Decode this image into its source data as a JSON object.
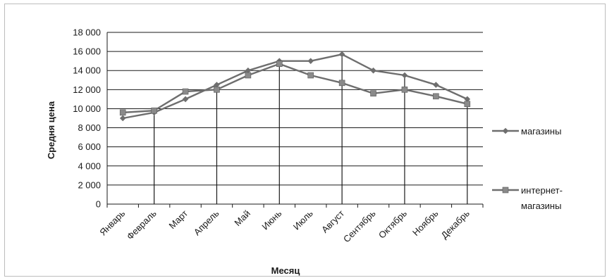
{
  "chart_data": {
    "type": "line",
    "xlabel": "Месяц",
    "ylabel": "Средня цена",
    "ylim": [
      0,
      18000
    ],
    "yticks": [
      0,
      2000,
      4000,
      6000,
      8000,
      10000,
      12000,
      14000,
      16000,
      18000
    ],
    "ytick_labels": [
      "0",
      "2 000",
      "4 000",
      "6 000",
      "8 000",
      "10 000",
      "12 000",
      "14 000",
      "16 000",
      "18 000"
    ],
    "categories": [
      "Январь",
      "Февраль",
      "Март",
      "Апрель",
      "Май",
      "Июнь",
      "Июль",
      "Август",
      "Сентябрь",
      "Октябрь",
      "Ноябрь",
      "Декабрь"
    ],
    "grid": "horizontal",
    "legend_position": "right",
    "series": [
      {
        "name": "магазины",
        "marker": "diamond",
        "color": "#6e6e6e",
        "values": [
          9000,
          9600,
          11000,
          12500,
          14000,
          15000,
          15000,
          15700,
          14000,
          13500,
          12500,
          11000
        ]
      },
      {
        "name": "интернет-магазины",
        "legend_lines": [
          "интернет-",
          "магазины"
        ],
        "marker": "square",
        "color": "#6e6e6e",
        "values": [
          9600,
          9800,
          11800,
          12000,
          13500,
          14700,
          13500,
          12700,
          11600,
          12000,
          11300,
          10500
        ]
      }
    ]
  }
}
